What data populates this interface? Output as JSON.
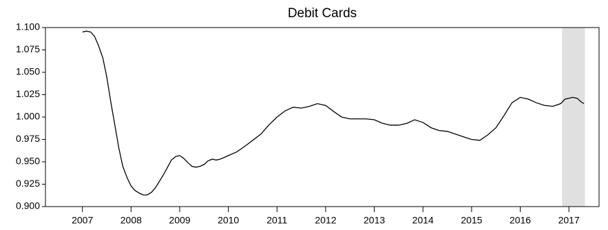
{
  "chart_data": {
    "type": "line",
    "title": "Debit Cards",
    "x": [
      2007.0,
      2007.08,
      2007.17,
      2007.25,
      2007.33,
      2007.42,
      2007.5,
      2007.58,
      2007.67,
      2007.75,
      2007.83,
      2007.92,
      2008.0,
      2008.08,
      2008.17,
      2008.25,
      2008.33,
      2008.42,
      2008.5,
      2008.58,
      2008.67,
      2008.75,
      2008.83,
      2008.92,
      2009.0,
      2009.08,
      2009.17,
      2009.25,
      2009.33,
      2009.42,
      2009.5,
      2009.58,
      2009.67,
      2009.75,
      2009.83,
      2009.92,
      2010.0,
      2010.17,
      2010.33,
      2010.5,
      2010.67,
      2010.83,
      2011.0,
      2011.17,
      2011.33,
      2011.5,
      2011.67,
      2011.83,
      2012.0,
      2012.17,
      2012.33,
      2012.5,
      2012.67,
      2012.83,
      2013.0,
      2013.17,
      2013.33,
      2013.5,
      2013.67,
      2013.83,
      2014.0,
      2014.17,
      2014.33,
      2014.5,
      2014.67,
      2014.83,
      2015.0,
      2015.17,
      2015.33,
      2015.5,
      2015.67,
      2015.83,
      2016.0,
      2016.17,
      2016.33,
      2016.5,
      2016.67,
      2016.83,
      2016.92,
      2017.08,
      2017.17,
      2017.25,
      2017.31
    ],
    "series": [
      {
        "color": "#000000",
        "values": [
          1.095,
          1.096,
          1.095,
          1.09,
          1.08,
          1.066,
          1.045,
          1.018,
          0.99,
          0.965,
          0.945,
          0.932,
          0.923,
          0.918,
          0.915,
          0.913,
          0.913,
          0.916,
          0.921,
          0.928,
          0.936,
          0.944,
          0.952,
          0.956,
          0.957,
          0.954,
          0.949,
          0.945,
          0.944,
          0.945,
          0.947,
          0.951,
          0.953,
          0.952,
          0.953,
          0.955,
          0.957,
          0.961,
          0.967,
          0.974,
          0.981,
          0.991,
          1.0,
          1.007,
          1.011,
          1.01,
          1.012,
          1.015,
          1.013,
          1.006,
          1.0,
          0.998,
          0.998,
          0.998,
          0.997,
          0.993,
          0.991,
          0.991,
          0.993,
          0.997,
          0.994,
          0.988,
          0.985,
          0.984,
          0.981,
          0.978,
          0.975,
          0.974,
          0.98,
          0.988,
          1.002,
          1.016,
          1.022,
          1.02,
          1.016,
          1.013,
          1.012,
          1.015,
          1.02,
          1.022,
          1.021,
          1.017,
          1.015
        ]
      }
    ],
    "shaded_region": [
      2016.86,
      2017.33
    ],
    "shade_color": "#e0e0e0",
    "xlim": [
      2006.24,
      2017.62
    ],
    "xticks": [
      2007,
      2008,
      2009,
      2010,
      2011,
      2012,
      2013,
      2014,
      2015,
      2016,
      2017
    ],
    "ylim": [
      0.9,
      1.1
    ],
    "yticks": [
      {
        "value": 0.9,
        "label": "0.900"
      },
      {
        "value": 0.925,
        "label": "0.925"
      },
      {
        "value": 0.95,
        "label": "0.950"
      },
      {
        "value": 0.975,
        "label": "0.975"
      },
      {
        "value": 1.0,
        "label": "1.000"
      },
      {
        "value": 1.025,
        "label": "1.025"
      },
      {
        "value": 1.05,
        "label": "1.050"
      },
      {
        "value": 1.075,
        "label": "1.075"
      },
      {
        "value": 1.1,
        "label": "1.100"
      }
    ]
  }
}
